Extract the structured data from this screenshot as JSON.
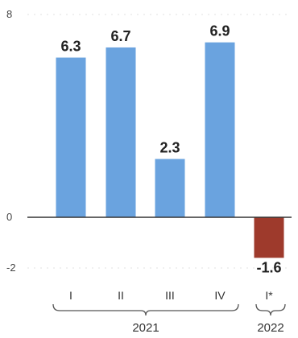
{
  "chart_data": {
    "type": "bar",
    "categories": [
      "I",
      "II",
      "III",
      "IV",
      "I*"
    ],
    "groups": [
      {
        "label": "2021",
        "categories": [
          "I",
          "II",
          "III",
          "IV"
        ]
      },
      {
        "label": "2022",
        "categories": [
          "I*"
        ]
      }
    ],
    "values": [
      6.3,
      6.7,
      2.3,
      6.9,
      -1.6
    ],
    "data_labels": [
      "6.3",
      "6.7",
      "2.3",
      "6.9",
      "-1.6"
    ],
    "y_ticks": [
      "8",
      "0",
      "-2"
    ],
    "ylim": [
      -2,
      8
    ],
    "colors": {
      "positive": "#6aa3df",
      "negative": "#9e3a2c"
    },
    "grid": true,
    "legend": "none"
  }
}
